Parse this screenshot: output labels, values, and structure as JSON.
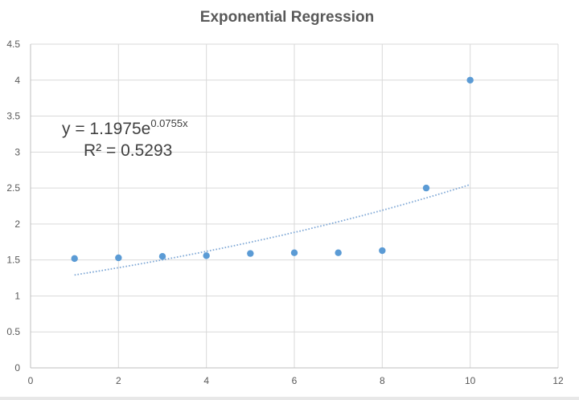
{
  "colors": {
    "point": "#5b9bd5",
    "trendline": "#7fa8d6",
    "grid": "#d9d9d9",
    "text": "#595959"
  },
  "chart_data": {
    "type": "scatter",
    "title": "Exponential Regression",
    "xlabel": "",
    "ylabel": "",
    "xlim": [
      0,
      12
    ],
    "ylim": [
      0,
      4.5
    ],
    "x_ticks": [
      "0",
      "2",
      "4",
      "6",
      "8",
      "10",
      "12"
    ],
    "y_ticks": [
      "0",
      "0.5",
      "1",
      "1.5",
      "2",
      "2.5",
      "3",
      "3.5",
      "4",
      "4.5"
    ],
    "grid": true,
    "legend": "none",
    "series": [
      {
        "x": [
          1,
          2,
          3,
          4,
          5,
          6,
          7,
          8,
          9,
          10
        ],
        "y": [
          1.52,
          1.53,
          1.55,
          1.56,
          1.59,
          1.6,
          1.6,
          1.63,
          2.5,
          4.0
        ]
      }
    ],
    "trendline": {
      "type": "exponential",
      "a": 1.1975,
      "b": 0.0755,
      "x_range": [
        1,
        10
      ]
    },
    "annotations": {
      "equation_main": "y = 1.1975e",
      "equation_exponent": "0.0755x",
      "r_squared": "R² = 0.5293"
    }
  }
}
